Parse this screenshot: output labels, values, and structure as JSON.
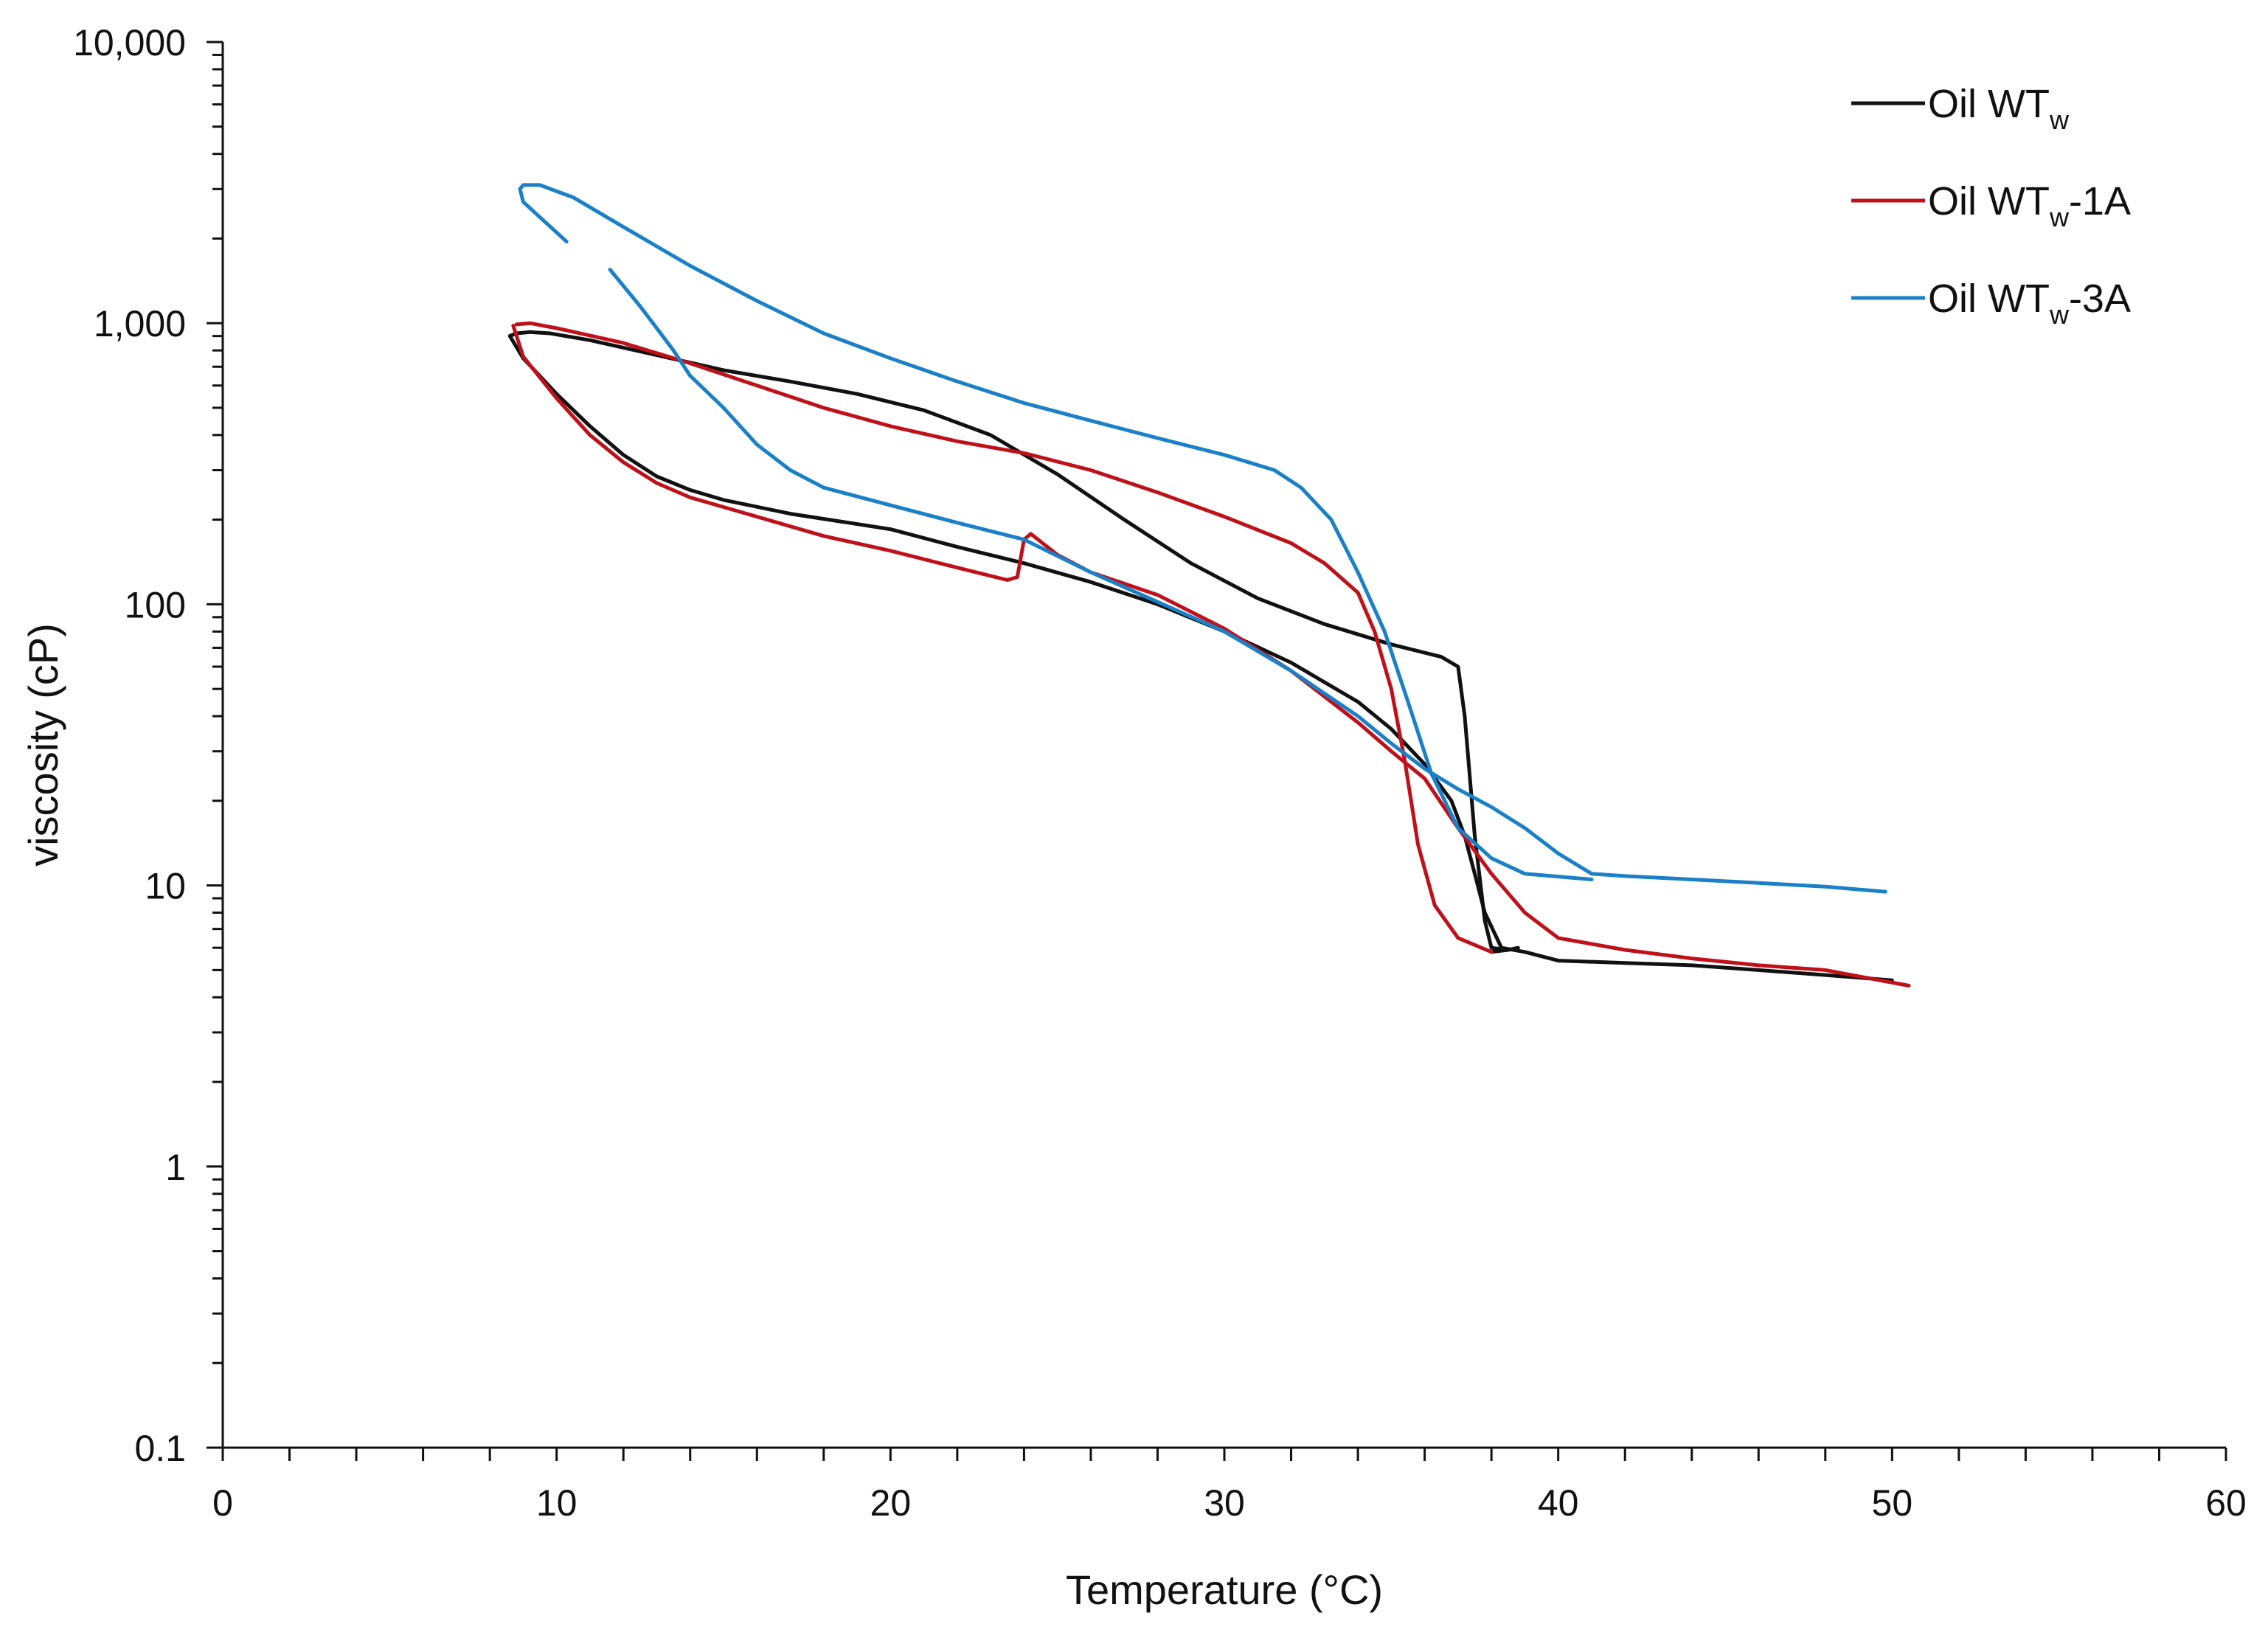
{
  "chart_data": {
    "type": "line",
    "xlabel": "Temperature (°C)",
    "ylabel": "viscosity (cP)",
    "xlim": [
      0,
      60
    ],
    "ylim": [
      0.1,
      10000
    ],
    "yscale": "log",
    "x_ticks": [
      0,
      10,
      20,
      30,
      40,
      50,
      60
    ],
    "x_tick_labels": [
      "0",
      "10",
      "20",
      "30",
      "40",
      "50",
      "60"
    ],
    "y_ticks": [
      0.1,
      1,
      10,
      100,
      1000,
      10000
    ],
    "y_tick_labels": [
      "0.1",
      "1",
      "10",
      "100",
      "1,000",
      "10,000"
    ],
    "grid": false,
    "legend_position": "top-right",
    "series": [
      {
        "name": "Oil WTw",
        "legend_base": "Oil WT",
        "legend_sub": "w",
        "legend_suffix": "",
        "color": "#111111",
        "x": [
          8.6,
          9,
          10,
          11,
          12,
          13,
          14,
          15,
          17,
          20,
          22,
          24,
          26,
          28,
          30,
          32,
          34,
          35,
          36,
          36.8,
          37.2,
          37.5,
          37.8,
          38.3,
          39,
          40,
          42,
          44,
          46,
          48,
          50
        ],
        "y": [
          900,
          750,
          560,
          430,
          340,
          285,
          255,
          235,
          210,
          185,
          160,
          140,
          120,
          100,
          80,
          62,
          45,
          36,
          27,
          20,
          15,
          11,
          8,
          6,
          5.8,
          5.4,
          5.3,
          5.2,
          5.0,
          4.8,
          4.6
        ]
      },
      {
        "name": "Oil WTw",
        "color": "#111111",
        "x": [
          38,
          38.5,
          38.8,
          38.5,
          38,
          37.8,
          37.5,
          37.2,
          37,
          36.5,
          35,
          33,
          31,
          29,
          27,
          25,
          23,
          21,
          19,
          17,
          15,
          13,
          11,
          9.8,
          9.2,
          8.8,
          8.6
        ],
        "y": [
          5.8,
          5.9,
          6.0,
          5.9,
          6.0,
          7.5,
          15,
          40,
          60,
          65,
          72,
          85,
          105,
          140,
          200,
          290,
          400,
          490,
          560,
          620,
          680,
          770,
          870,
          920,
          930,
          920,
          900
        ]
      },
      {
        "name": "Oil WTw-1A",
        "legend_base": "Oil WT",
        "legend_sub": "w",
        "legend_suffix": "-1A",
        "color": "#c0111b",
        "x": [
          8.7,
          9,
          10,
          11,
          12,
          13,
          14,
          16,
          18,
          20,
          22,
          23.5,
          23.8,
          24.0,
          24.2,
          25,
          26,
          28,
          30,
          32,
          34,
          35,
          36,
          37,
          38,
          39,
          40,
          42,
          44,
          46,
          48,
          50.5
        ],
        "y": [
          980,
          760,
          540,
          400,
          320,
          270,
          240,
          205,
          175,
          155,
          135,
          122,
          125,
          170,
          178,
          150,
          130,
          108,
          82,
          58,
          38,
          30,
          24,
          16,
          11,
          8,
          6.5,
          5.9,
          5.5,
          5.2,
          5.0,
          4.4
        ]
      },
      {
        "name": "Oil WTw-1A",
        "color": "#c0111b",
        "x": [
          38,
          37,
          36.3,
          35.8,
          35.4,
          35,
          34.5,
          34,
          33,
          32,
          30,
          28,
          26,
          24,
          22,
          20,
          18,
          16,
          14,
          12,
          10,
          9.2,
          8.8
        ],
        "y": [
          5.8,
          6.5,
          8.5,
          14,
          28,
          50,
          80,
          110,
          140,
          165,
          205,
          250,
          300,
          345,
          380,
          430,
          500,
          600,
          720,
          850,
          960,
          1000,
          990
        ]
      },
      {
        "name": "Oil WTw-3A",
        "legend_base": "Oil WT",
        "legend_sub": "w",
        "legend_suffix": "-3A",
        "color": "#1a80c8",
        "x": [
          11.6,
          12.5,
          13.5,
          14,
          15,
          16,
          17,
          18,
          20,
          22,
          24,
          26,
          28,
          30,
          32,
          34,
          35,
          36,
          37,
          38,
          39,
          40,
          41,
          42,
          44,
          46,
          48,
          49.8
        ],
        "y": [
          1550,
          1150,
          800,
          650,
          500,
          370,
          300,
          260,
          225,
          195,
          170,
          130,
          102,
          80,
          58,
          40,
          32,
          26,
          22,
          19,
          16,
          13,
          11,
          10.8,
          10.5,
          10.2,
          9.9,
          9.5
        ]
      },
      {
        "name": "Oil WTw-3A",
        "color": "#1a80c8",
        "x": [
          41,
          39,
          38,
          37,
          36.2,
          35.5,
          34.8,
          34,
          33.2,
          32.3,
          31.5,
          30,
          28,
          26,
          24,
          22,
          20,
          18,
          16,
          14,
          12,
          10.5,
          9.5,
          9.0,
          8.9,
          9.0,
          10.3
        ],
        "y": [
          10.5,
          11,
          12.5,
          16,
          25,
          45,
          80,
          130,
          200,
          260,
          300,
          340,
          390,
          450,
          520,
          620,
          750,
          920,
          1200,
          1600,
          2200,
          2800,
          3100,
          3100,
          3000,
          2700,
          1950
        ]
      }
    ]
  }
}
